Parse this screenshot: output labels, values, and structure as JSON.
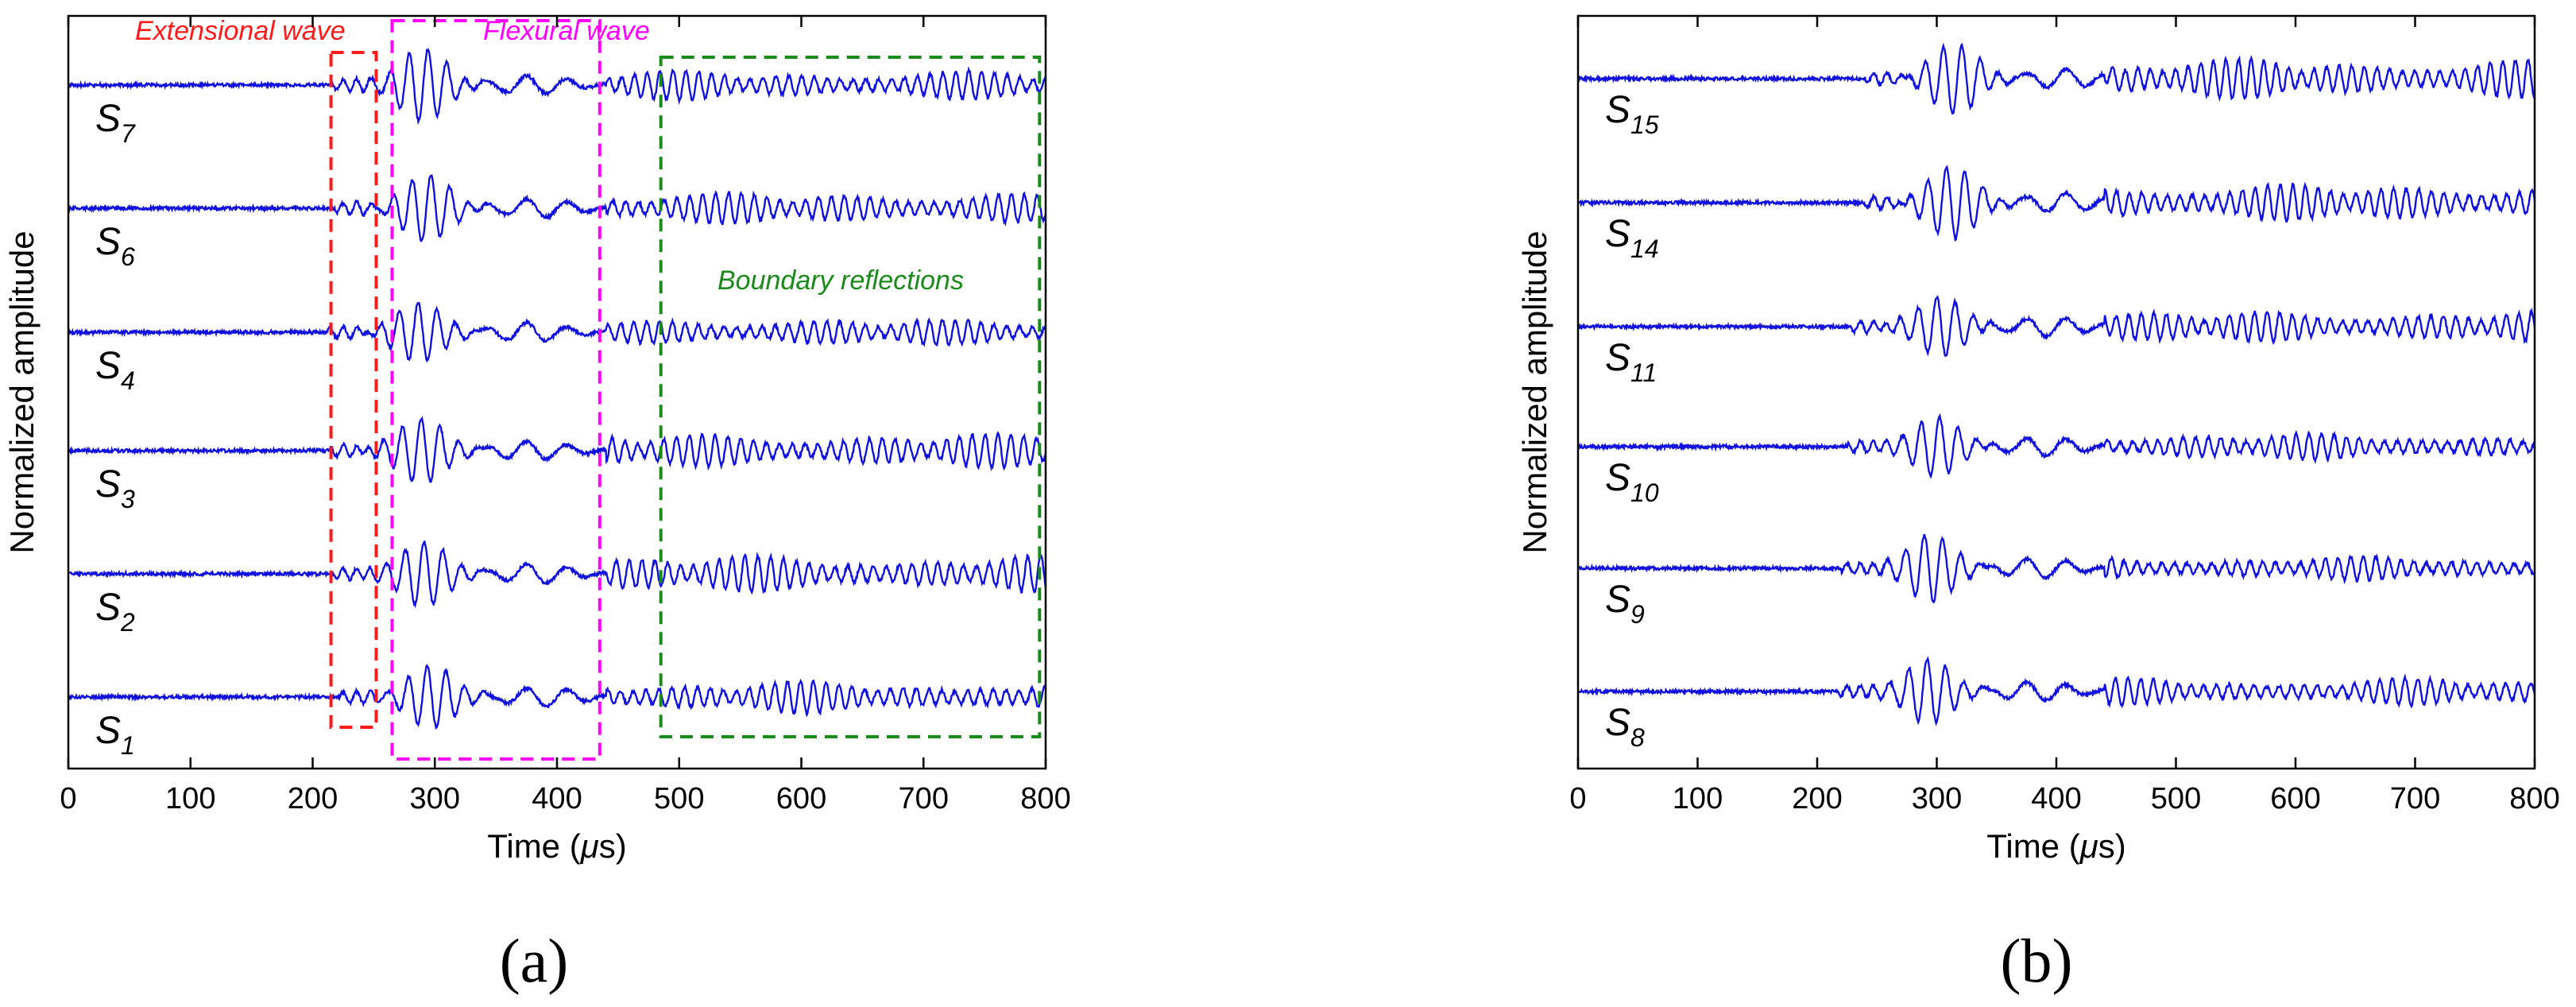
{
  "chart_data": [
    {
      "type": "line",
      "panel_label": "(a)",
      "xlabel_prefix": "Time (",
      "xlabel_mu": "μ",
      "xlabel_suffix": "s)",
      "ylabel": "Normalized amplitude",
      "xlim": [
        0,
        800
      ],
      "x_ticks": [
        0,
        100,
        200,
        300,
        400,
        500,
        600,
        700,
        800
      ],
      "y_ticks": [],
      "grid": false,
      "series": [
        {
          "name": "S",
          "sub": "7",
          "onset": 215,
          "flex_amp": 1.35,
          "refl_amp": 0.55,
          "seed": 7
        },
        {
          "name": "S",
          "sub": "6",
          "onset": 218,
          "flex_amp": 1.25,
          "refl_amp": 0.6,
          "seed": 6
        },
        {
          "name": "S",
          "sub": "4",
          "onset": 212,
          "flex_amp": 1.1,
          "refl_amp": 0.5,
          "seed": 4
        },
        {
          "name": "S",
          "sub": "3",
          "onset": 214,
          "flex_amp": 1.2,
          "refl_amp": 0.65,
          "seed": 3
        },
        {
          "name": "S",
          "sub": "2",
          "onset": 216,
          "flex_amp": 1.2,
          "refl_amp": 0.7,
          "seed": 2
        },
        {
          "name": "S",
          "sub": "1",
          "onset": 222,
          "flex_amp": 1.15,
          "refl_amp": 0.6,
          "seed": 1
        }
      ],
      "annotations": [
        {
          "text": "Extensional wave",
          "color": "#ff1a1a",
          "x_range": [
            215,
            252
          ]
        },
        {
          "text": "Flexural wave",
          "color": "#ff00ff",
          "x_range": [
            265,
            435
          ]
        },
        {
          "text": "Boundary reflections",
          "color": "#1a8a1a",
          "x_range": [
            485,
            795
          ]
        }
      ]
    },
    {
      "type": "line",
      "panel_label": "(b)",
      "xlabel_prefix": "Time (",
      "xlabel_mu": "μ",
      "xlabel_suffix": "s)",
      "ylabel": "Normalized amplitude",
      "xlim": [
        0,
        800
      ],
      "x_ticks": [
        0,
        100,
        200,
        300,
        400,
        500,
        600,
        700,
        800
      ],
      "y_ticks": [],
      "grid": false,
      "series": [
        {
          "name": "S",
          "sub": "15",
          "onset": 240,
          "flex_amp": 1.3,
          "refl_amp": 0.75,
          "seed": 15
        },
        {
          "name": "S",
          "sub": "14",
          "onset": 238,
          "flex_amp": 1.35,
          "refl_amp": 0.7,
          "seed": 14
        },
        {
          "name": "S",
          "sub": "11",
          "onset": 228,
          "flex_amp": 1.1,
          "refl_amp": 0.6,
          "seed": 11
        },
        {
          "name": "S",
          "sub": "10",
          "onset": 225,
          "flex_amp": 1.1,
          "refl_amp": 0.5,
          "seed": 10
        },
        {
          "name": "S",
          "sub": "9",
          "onset": 220,
          "flex_amp": 1.25,
          "refl_amp": 0.45,
          "seed": 9
        },
        {
          "name": "S",
          "sub": "8",
          "onset": 218,
          "flex_amp": 1.2,
          "refl_amp": 0.5,
          "seed": 8
        }
      ]
    }
  ],
  "line_color": "#1010e0"
}
